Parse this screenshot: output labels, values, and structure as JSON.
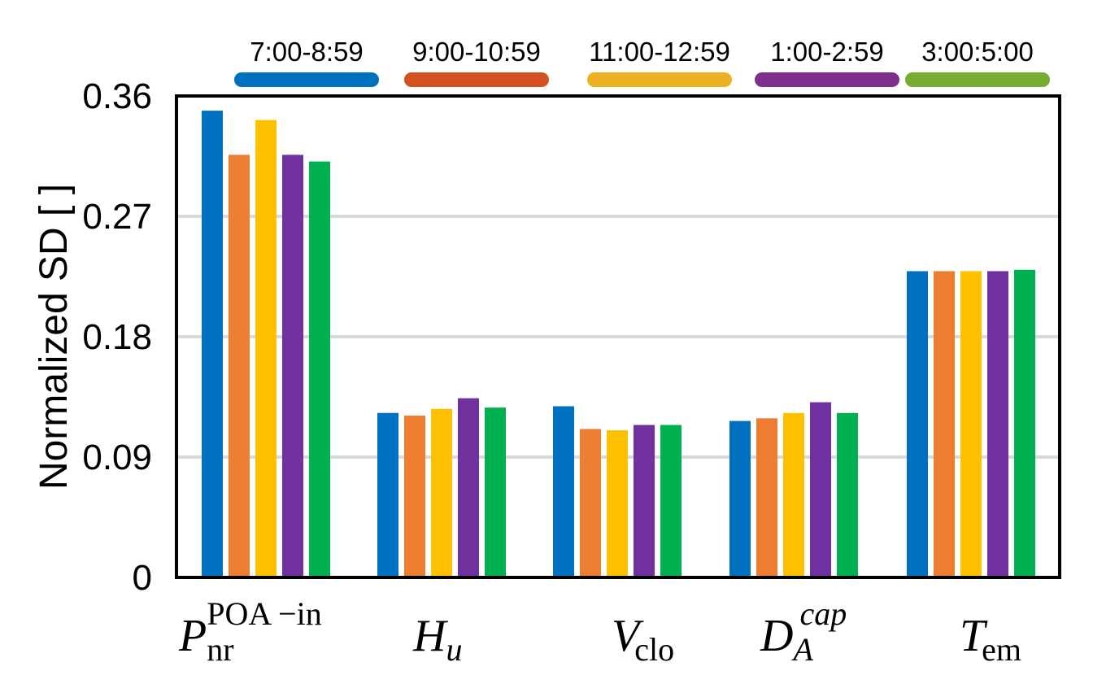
{
  "chart_data": {
    "type": "bar",
    "title": "",
    "xlabel": "",
    "ylabel": "Normalized SD [ ]",
    "ylim": [
      0,
      0.36
    ],
    "yticks": [
      "0",
      "0.09",
      "0.18",
      "0.27",
      "0.36"
    ],
    "grid": true,
    "legend_position": "top",
    "categories": [
      {
        "main": "P",
        "sub": "nr",
        "sup": "POA −in",
        "sub_italic": false,
        "sup_italic": false
      },
      {
        "main": "H",
        "sub": "u",
        "sup": "",
        "sub_italic": true,
        "sup_italic": false
      },
      {
        "main": "V",
        "sub": "clo",
        "sup": "",
        "sub_italic": false,
        "sup_italic": false
      },
      {
        "main": "D",
        "sub": "A",
        "sup": "cap",
        "sub_italic": true,
        "sup_italic": true
      },
      {
        "main": "T",
        "sub": "em",
        "sup": "",
        "sub_italic": false,
        "sup_italic": false
      }
    ],
    "series": [
      {
        "name": "7:00-8:59",
        "bar_color": "#0070c0",
        "legend_color": "#0070c0",
        "values": [
          0.349,
          0.123,
          0.128,
          0.117,
          0.229
        ]
      },
      {
        "name": "9:00-10:59",
        "bar_color": "#ed7d31",
        "legend_color": "#d55021",
        "values": [
          0.316,
          0.121,
          0.111,
          0.119,
          0.229
        ]
      },
      {
        "name": "11:00-12:59",
        "bar_color": "#ffc000",
        "legend_color": "#edb021",
        "values": [
          0.342,
          0.126,
          0.11,
          0.123,
          0.229
        ]
      },
      {
        "name": "1:00-2:59",
        "bar_color": "#7030a0",
        "legend_color": "#7e2f8e",
        "values": [
          0.316,
          0.134,
          0.114,
          0.131,
          0.229
        ]
      },
      {
        "name": "3:00:5:00",
        "bar_color": "#00b050",
        "legend_color": "#77ac30",
        "values": [
          0.311,
          0.127,
          0.114,
          0.123,
          0.23
        ]
      }
    ]
  }
}
